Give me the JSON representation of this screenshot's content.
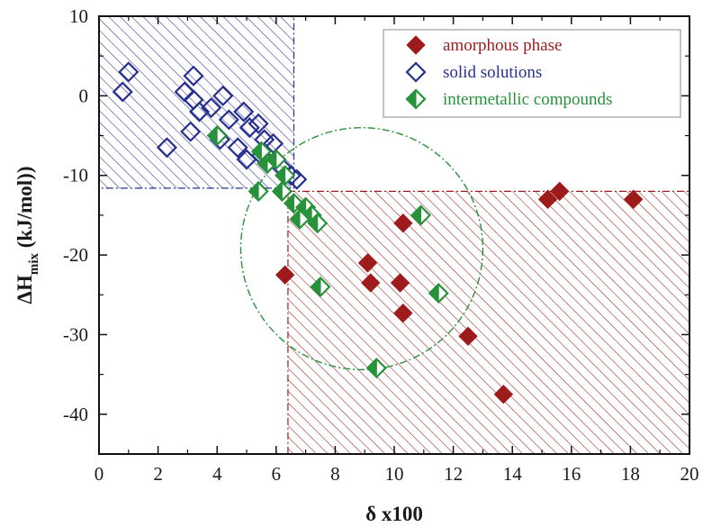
{
  "chart_data": {
    "type": "scatter",
    "xlabel": "δ x100",
    "ylabel_main": "ΔH",
    "ylabel_sub": "mix",
    "ylabel_rest": " (kJ/mol))",
    "xlim": [
      0,
      20
    ],
    "ylim": [
      -45,
      10
    ],
    "xticks": [
      0,
      2,
      4,
      6,
      8,
      10,
      12,
      14,
      16,
      18,
      20
    ],
    "yticks": [
      10,
      0,
      -10,
      -20,
      -30,
      -40
    ],
    "grid": false,
    "legend_position": "top-right",
    "series": [
      {
        "name": "amorphous phase",
        "marker": "filled-diamond",
        "color": "#9e1b1b",
        "points": [
          [
            15.2,
            -13
          ],
          [
            15.6,
            -12
          ],
          [
            18.1,
            -13
          ],
          [
            10.3,
            -16
          ],
          [
            6.3,
            -22.5
          ],
          [
            9.1,
            -21
          ],
          [
            9.2,
            -23.5
          ],
          [
            10.2,
            -23.5
          ],
          [
            10.3,
            -27.3
          ],
          [
            12.5,
            -30.2
          ],
          [
            13.7,
            -37.5
          ]
        ]
      },
      {
        "name": "solid solutions",
        "marker": "open-diamond",
        "color": "#27308f",
        "points": [
          [
            1.0,
            3
          ],
          [
            0.8,
            0.5
          ],
          [
            3.2,
            2.5
          ],
          [
            2.9,
            0.5
          ],
          [
            3.2,
            -0.5
          ],
          [
            3.4,
            -2
          ],
          [
            3.1,
            -4.5
          ],
          [
            2.3,
            -6.5
          ],
          [
            4.2,
            0
          ],
          [
            3.8,
            -1.5
          ],
          [
            4.4,
            -3
          ],
          [
            4.1,
            -5.5
          ],
          [
            4.9,
            -2
          ],
          [
            5.1,
            -4
          ],
          [
            4.7,
            -6.5
          ],
          [
            5.0,
            -8
          ],
          [
            5.4,
            -3.5
          ],
          [
            5.6,
            -5.5
          ],
          [
            5.9,
            -6
          ],
          [
            5.5,
            -7.5
          ],
          [
            6.2,
            -9
          ],
          [
            6.5,
            -10
          ],
          [
            6.7,
            -10.5
          ],
          [
            5.7,
            -8.5
          ]
        ]
      },
      {
        "name": "intermetallic compounds",
        "marker": "half-filled-diamond",
        "color": "#27923a",
        "points": [
          [
            4.0,
            -5
          ],
          [
            5.5,
            -7
          ],
          [
            5.7,
            -8.5
          ],
          [
            5.4,
            -12
          ],
          [
            6.0,
            -8
          ],
          [
            6.3,
            -10
          ],
          [
            6.2,
            -12
          ],
          [
            6.6,
            -13.5
          ],
          [
            7.0,
            -14
          ],
          [
            7.2,
            -15
          ],
          [
            7.4,
            -16
          ],
          [
            6.8,
            -15.5
          ],
          [
            7.5,
            -24
          ],
          [
            10.9,
            -15
          ],
          [
            11.5,
            -24.8
          ],
          [
            9.4,
            -34.2
          ]
        ]
      }
    ]
  },
  "regions": {
    "solid_solution_box": {
      "x": [
        0,
        6.6
      ],
      "y": [
        -11.6,
        10
      ],
      "color": "#27308f"
    },
    "amorphous_box": {
      "x": [
        6.4,
        20
      ],
      "y": [
        -45,
        -12
      ],
      "color": "#9e1b1b"
    },
    "intermetallic_ellipse": {
      "cx": 8.9,
      "cy": -19.2,
      "rx": 4.1,
      "ry": 15.2,
      "color": "#27923a"
    }
  }
}
